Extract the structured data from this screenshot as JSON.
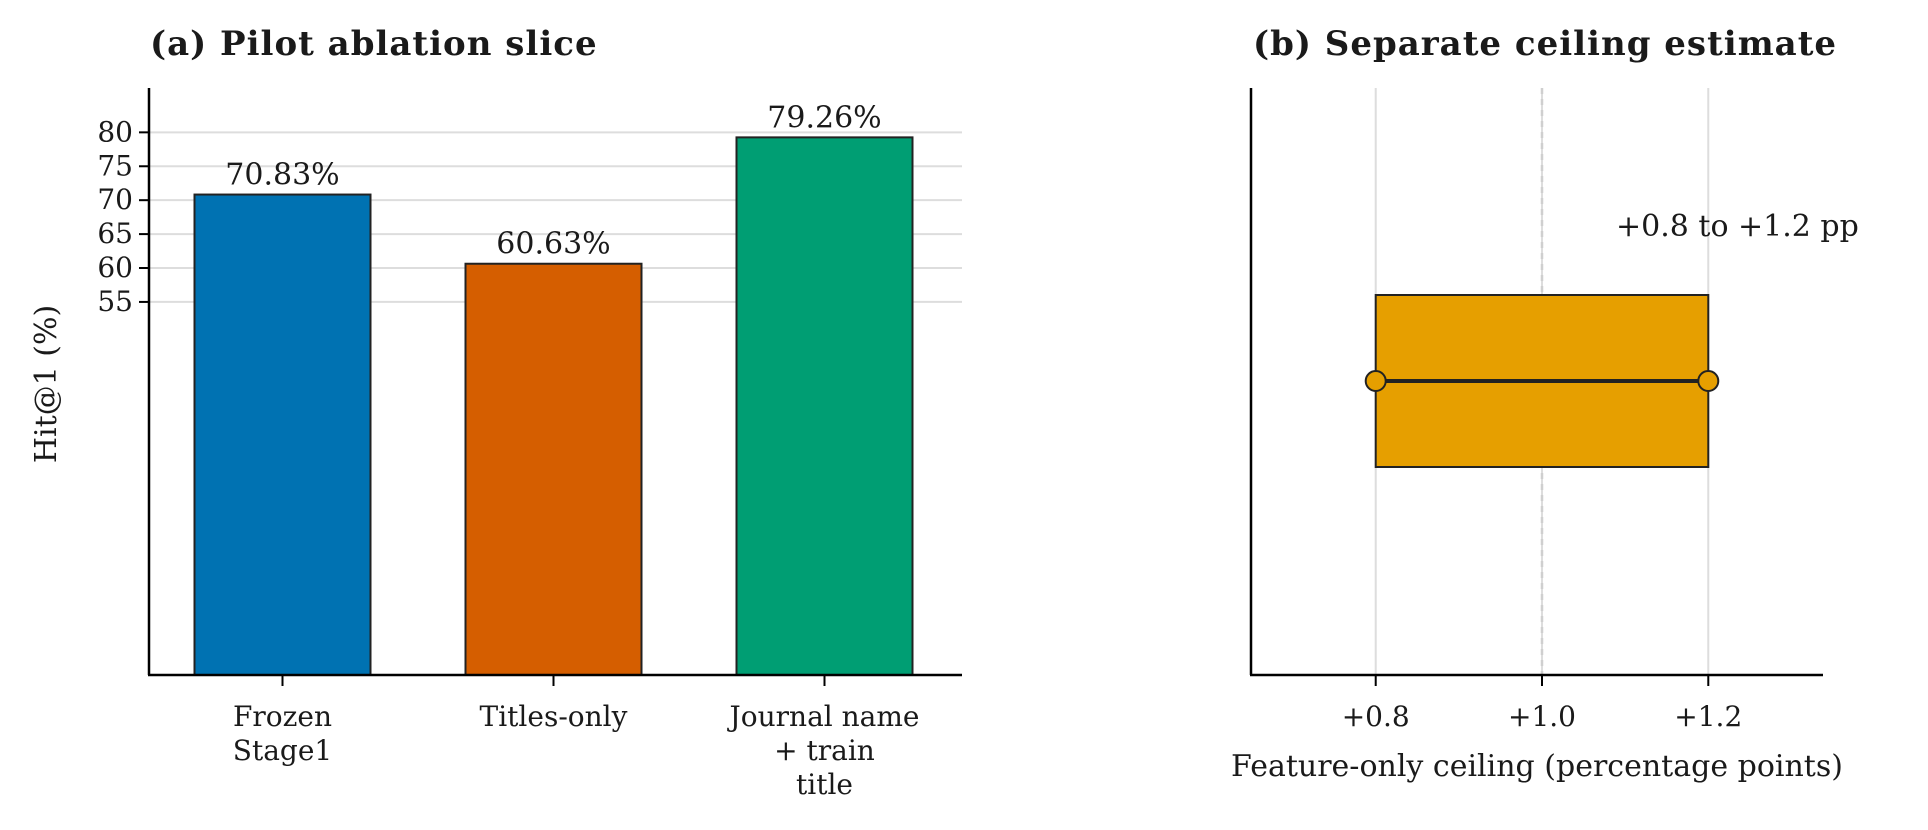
{
  "chart_data": [
    {
      "type": "bar",
      "title": "(a) Pilot ablation slice",
      "xlabel": "",
      "ylabel": "Hit@1 (%)",
      "categories": [
        [
          "Frozen",
          "Stage1"
        ],
        [
          "Titles-only"
        ],
        [
          "Journal name",
          "+ train",
          "title"
        ]
      ],
      "values": [
        70.83,
        60.63,
        79.26
      ],
      "value_labels": [
        "70.83%",
        "60.63%",
        "79.26%"
      ],
      "colors": [
        "#0072B2",
        "#D55E00",
        "#009E73"
      ],
      "yticks": [
        55,
        60,
        65,
        70,
        75,
        80
      ],
      "ytick_labels": [
        "55",
        "60",
        "65",
        "70",
        "75",
        "80"
      ],
      "ylim": [
        0,
        83
      ],
      "grid": "horizontal"
    },
    {
      "type": "range",
      "title": "(b) Separate ceiling estimate",
      "xlabel": "Feature-only ceiling (percentage points)",
      "ylabel": "",
      "range": [
        0.8,
        1.2
      ],
      "midline": 1.0,
      "xlim": [
        0.65,
        1.35
      ],
      "xticks": [
        0.8,
        1.0,
        1.2
      ],
      "xtick_labels": [
        "+0.8",
        "+1.0",
        "+1.2"
      ],
      "annotation": "+0.8 to +1.2 pp",
      "color": "#E69F00",
      "grid": "vertical"
    }
  ]
}
